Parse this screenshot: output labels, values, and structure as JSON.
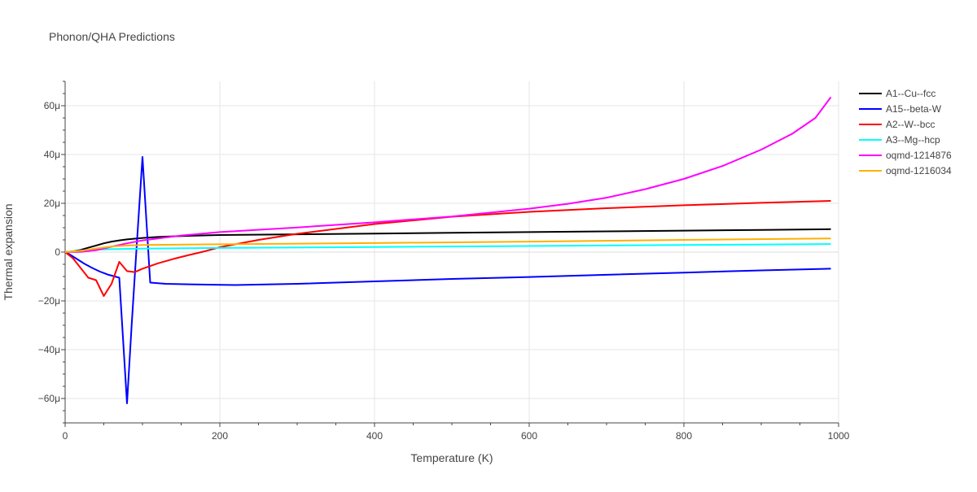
{
  "chart_data": {
    "type": "line",
    "title": "Phonon/QHA Predictions",
    "xlabel": "Temperature (K)",
    "ylabel": "Thermal expansion",
    "xlim": [
      0,
      1000
    ],
    "ylim": [
      -70,
      70
    ],
    "x_ticks": [
      0,
      200,
      400,
      600,
      800,
      1000
    ],
    "x_tick_labels": [
      "0",
      "200",
      "400",
      "600",
      "800",
      "1000"
    ],
    "y_ticks": [
      -60,
      -40,
      -20,
      0,
      20,
      40,
      60
    ],
    "y_tick_labels": [
      "−60μ",
      "−40μ",
      "−20μ",
      "0",
      "20μ",
      "40μ",
      "60μ"
    ],
    "y_unit_scale": "1e-6",
    "grid": true,
    "legend_position": "top-right",
    "series": [
      {
        "name": "A1--Cu--fcc",
        "color": "#000000",
        "x": [
          0,
          10,
          20,
          30,
          40,
          50,
          60,
          70,
          80,
          90,
          100,
          120,
          150,
          200,
          300,
          400,
          500,
          600,
          700,
          800,
          900,
          990
        ],
        "y": [
          0,
          0.3,
          0.9,
          1.8,
          2.7,
          3.6,
          4.3,
          4.8,
          5.2,
          5.5,
          5.8,
          6.2,
          6.6,
          7.0,
          7.3,
          7.6,
          7.9,
          8.2,
          8.5,
          8.8,
          9.1,
          9.4
        ]
      },
      {
        "name": "A15--beta-W",
        "color": "#0000ff",
        "x": [
          0,
          5,
          15,
          25,
          35,
          45,
          55,
          62,
          70,
          80,
          86,
          92,
          100,
          110,
          130,
          160,
          220,
          300,
          400,
          500,
          600,
          700,
          800,
          900,
          990
        ],
        "y": [
          0,
          -0.8,
          -2.8,
          -4.8,
          -6.5,
          -8.0,
          -9.2,
          -9.8,
          -10.5,
          -62,
          -30,
          0,
          39,
          -12.5,
          -13.0,
          -13.2,
          -13.5,
          -13.0,
          -12.0,
          -11.0,
          -10.2,
          -9.3,
          -8.4,
          -7.5,
          -6.8
        ]
      },
      {
        "name": "A2--W--bcc",
        "color": "#ff0000",
        "x": [
          0,
          10,
          20,
          30,
          40,
          50,
          60,
          70,
          80,
          90,
          100,
          120,
          140,
          160,
          180,
          200,
          250,
          300,
          400,
          500,
          600,
          700,
          800,
          900,
          990
        ],
        "y": [
          0,
          -2.5,
          -6.5,
          -10.5,
          -11.5,
          -18,
          -13,
          -4,
          -7.8,
          -8.2,
          -6.8,
          -4.6,
          -2.8,
          -1.2,
          0.3,
          2.0,
          5.0,
          7.5,
          11.5,
          14.5,
          16.5,
          18.0,
          19.2,
          20.2,
          21.0
        ]
      },
      {
        "name": "A3--Mg--hcp",
        "color": "#00ffff",
        "x": [
          0,
          20,
          40,
          60,
          100,
          200,
          400,
          600,
          800,
          990
        ],
        "y": [
          0,
          0.6,
          1.0,
          1.2,
          1.4,
          1.7,
          2.1,
          2.5,
          2.9,
          3.3
        ]
      },
      {
        "name": "oqmd-1214876",
        "color": "#ff00ff",
        "x": [
          0,
          20,
          40,
          60,
          80,
          100,
          150,
          200,
          300,
          400,
          500,
          600,
          650,
          700,
          750,
          800,
          850,
          900,
          940,
          970,
          990
        ],
        "y": [
          0,
          0.1,
          0.8,
          2.2,
          3.6,
          4.8,
          6.8,
          8.2,
          10.1,
          12.2,
          14.6,
          17.8,
          19.8,
          22.3,
          25.8,
          30.0,
          35.3,
          42.0,
          48.5,
          55.0,
          63.5
        ]
      },
      {
        "name": "oqmd-1216034",
        "color": "#ffb000",
        "x": [
          0,
          20,
          40,
          60,
          80,
          100,
          200,
          400,
          600,
          800,
          990
        ],
        "y": [
          0,
          0.5,
          1.5,
          2.3,
          2.7,
          2.9,
          3.2,
          3.7,
          4.3,
          5.0,
          5.6
        ]
      }
    ]
  }
}
